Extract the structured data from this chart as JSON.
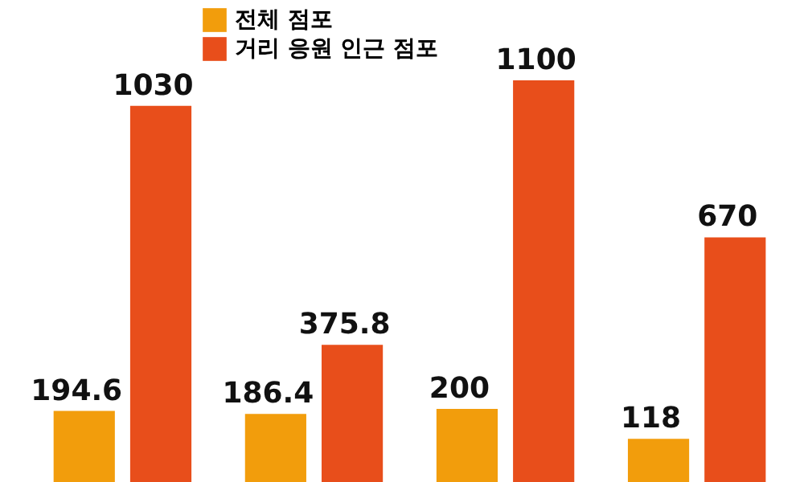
{
  "chart_data": {
    "type": "bar",
    "categories": [
      null,
      null,
      null,
      null
    ],
    "series": [
      {
        "name": "전체 점포",
        "color": "#f29d0c",
        "values": [
          194.6,
          186.4,
          200,
          118
        ]
      },
      {
        "name": "거리 응원 인근 점포",
        "color": "#e84e1b",
        "values": [
          1030,
          375.8,
          1100,
          670
        ]
      }
    ],
    "data_labels": true,
    "legend": "top",
    "tick_labels": false
  }
}
